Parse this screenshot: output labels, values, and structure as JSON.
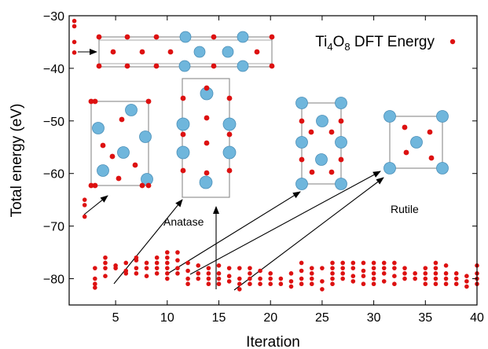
{
  "chart_data": {
    "type": "scatter",
    "title": "",
    "xlabel": "Iteration",
    "ylabel": "Total energy (eV)",
    "xlim": [
      0.5,
      40
    ],
    "ylim": [
      -85,
      -30
    ],
    "x_ticks": [
      5,
      10,
      15,
      20,
      25,
      30,
      35,
      40
    ],
    "y_ticks": [
      -30,
      -40,
      -50,
      -60,
      -70,
      -80
    ],
    "grid": false,
    "legend_position": "top-right",
    "colors": {
      "points": "#dd1111",
      "titanium": "#6fb6dc",
      "oxygen": "#dd1111",
      "cell": "#8a8a8a",
      "arrow": "#000000"
    },
    "series": [
      {
        "name": "Ti4O8 DFT Energy",
        "legend": {
          "base": "Ti",
          "sub1": "4",
          "mid": "O",
          "sub2": "8",
          "rest": " DFT Energy"
        },
        "points": [
          [
            1,
            -31
          ],
          [
            1,
            -32
          ],
          [
            1,
            -35
          ],
          [
            1,
            -37
          ],
          [
            2,
            -65
          ],
          [
            2,
            -66
          ],
          [
            2,
            -68.2
          ],
          [
            3,
            -78
          ],
          [
            3,
            -80
          ],
          [
            3,
            -81
          ],
          [
            3,
            -81.7
          ],
          [
            4,
            -76
          ],
          [
            4,
            -77
          ],
          [
            4,
            -78
          ],
          [
            4,
            -79.5
          ],
          [
            5,
            -77.5
          ],
          [
            5,
            -78
          ],
          [
            6,
            -77
          ],
          [
            6,
            -78.5
          ],
          [
            6,
            -79
          ],
          [
            7,
            -76
          ],
          [
            7,
            -76.5
          ],
          [
            7,
            -78
          ],
          [
            7,
            -79
          ],
          [
            8,
            -77
          ],
          [
            8,
            -78
          ],
          [
            8,
            -79.5
          ],
          [
            9,
            -76
          ],
          [
            9,
            -77
          ],
          [
            9,
            -78
          ],
          [
            9,
            -79
          ],
          [
            10,
            -75
          ],
          [
            10,
            -76
          ],
          [
            10,
            -77
          ],
          [
            10,
            -78
          ],
          [
            10,
            -79
          ],
          [
            10,
            -80
          ],
          [
            11,
            -75
          ],
          [
            11,
            -76.5
          ],
          [
            11,
            -78
          ],
          [
            11,
            -79
          ],
          [
            12,
            -77
          ],
          [
            12,
            -78.5
          ],
          [
            12,
            -80
          ],
          [
            12,
            -81
          ],
          [
            13,
            -77.5
          ],
          [
            13,
            -79
          ],
          [
            13,
            -80
          ],
          [
            14,
            -78
          ],
          [
            14,
            -79
          ],
          [
            14,
            -80
          ],
          [
            14,
            -81
          ],
          [
            15,
            -77.5
          ],
          [
            15,
            -79
          ],
          [
            15,
            -80
          ],
          [
            15,
            -81
          ],
          [
            16,
            -78
          ],
          [
            16,
            -79.5
          ],
          [
            16,
            -80.5
          ],
          [
            17,
            -78
          ],
          [
            17,
            -80
          ],
          [
            17,
            -81
          ],
          [
            17,
            -82
          ],
          [
            18,
            -78
          ],
          [
            18,
            -79
          ],
          [
            18,
            -80
          ],
          [
            18,
            -81
          ],
          [
            19,
            -78.5
          ],
          [
            19,
            -80
          ],
          [
            19,
            -81
          ],
          [
            20,
            -79
          ],
          [
            20,
            -80
          ],
          [
            20,
            -81
          ],
          [
            21,
            -80
          ],
          [
            21,
            -81
          ],
          [
            22,
            -79
          ],
          [
            22,
            -80.5
          ],
          [
            22,
            -81.5
          ],
          [
            23,
            -77
          ],
          [
            23,
            -78.5
          ],
          [
            23,
            -80
          ],
          [
            23,
            -81
          ],
          [
            24,
            -78
          ],
          [
            24,
            -79
          ],
          [
            24,
            -80
          ],
          [
            24,
            -81
          ],
          [
            25,
            -78
          ],
          [
            25,
            -80.5
          ],
          [
            25,
            -82
          ],
          [
            26,
            -77
          ],
          [
            26,
            -78
          ],
          [
            26,
            -79
          ],
          [
            26,
            -80
          ],
          [
            26,
            -81
          ],
          [
            27,
            -77
          ],
          [
            27,
            -78
          ],
          [
            27,
            -79
          ],
          [
            27,
            -80
          ],
          [
            28,
            -77
          ],
          [
            28,
            -78
          ],
          [
            28,
            -79.5
          ],
          [
            28,
            -80.5
          ],
          [
            29,
            -77
          ],
          [
            29,
            -78.5
          ],
          [
            29,
            -79.5
          ],
          [
            29,
            -81
          ],
          [
            30,
            -77
          ],
          [
            30,
            -78
          ],
          [
            30,
            -79
          ],
          [
            30,
            -80
          ],
          [
            30,
            -81
          ],
          [
            31,
            -77
          ],
          [
            31,
            -78
          ],
          [
            31,
            -79
          ],
          [
            31,
            -80.5
          ],
          [
            32,
            -77
          ],
          [
            32,
            -78
          ],
          [
            32,
            -79.5
          ],
          [
            32,
            -81
          ],
          [
            33,
            -78
          ],
          [
            33,
            -79
          ],
          [
            33,
            -80
          ],
          [
            34,
            -79
          ],
          [
            34,
            -80
          ],
          [
            35,
            -78
          ],
          [
            35,
            -79
          ],
          [
            35,
            -80
          ],
          [
            35,
            -81
          ],
          [
            36,
            -77
          ],
          [
            36,
            -78
          ],
          [
            36,
            -79
          ],
          [
            36,
            -80
          ],
          [
            36,
            -81
          ],
          [
            37,
            -77.5
          ],
          [
            37,
            -79
          ],
          [
            37,
            -80
          ],
          [
            37,
            -81
          ],
          [
            38,
            -79
          ],
          [
            38,
            -80
          ],
          [
            38,
            -81
          ],
          [
            39,
            -79.5
          ],
          [
            39,
            -80.5
          ],
          [
            39,
            -81.5
          ],
          [
            40,
            -77.5
          ],
          [
            40,
            -79
          ],
          [
            40,
            -80
          ],
          [
            40,
            -81
          ]
        ]
      }
    ],
    "annotations": [
      {
        "text": "Anatase"
      },
      {
        "text": "Rutile"
      }
    ]
  }
}
